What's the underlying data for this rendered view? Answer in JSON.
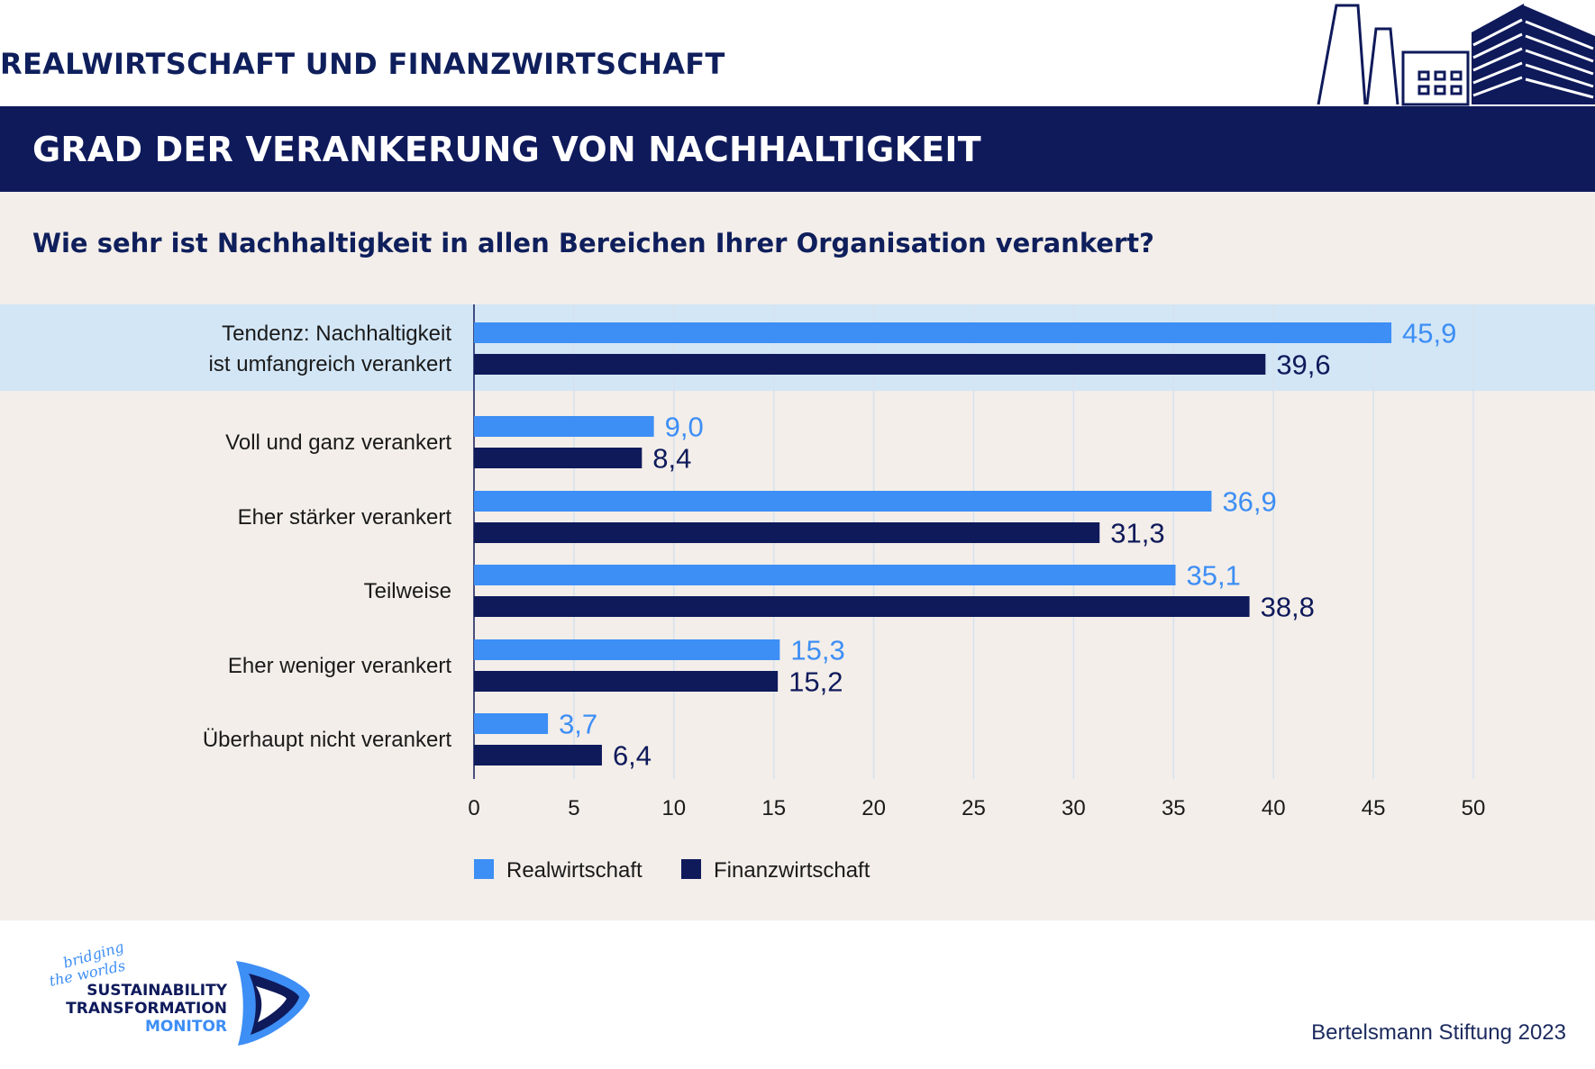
{
  "header": {
    "top_label": "REALWIRTSCHAFT UND FINANZWIRTSCHAFT",
    "title": "GRAD DER VERANKERUNG VON NACHHALTIGKEIT",
    "question": "Wie sehr ist Nachhaltigkeit in allen Bereichen Ihrer Organisation verankert?"
  },
  "colors": {
    "navy": "#0f1a5b",
    "real": "#3d8ef5",
    "fin": "#0f1a5b",
    "highlight": "#d3e6f6",
    "beige": "#f3eee9",
    "grid": "#d6e2ef"
  },
  "chart_data": {
    "type": "bar",
    "orientation": "horizontal",
    "categories": [
      [
        "Tendenz: Nachhaltigkeit",
        "ist umfangreich verankert"
      ],
      [
        "Voll und ganz verankert"
      ],
      [
        "Eher stärker verankert"
      ],
      [
        "Teilweise"
      ],
      [
        "Eher weniger verankert"
      ],
      [
        "Überhaupt nicht verankert"
      ]
    ],
    "highlighted_category": 0,
    "series": [
      {
        "name": "Realwirtschaft",
        "values": [
          45.9,
          9.0,
          36.9,
          35.1,
          15.3,
          3.7
        ],
        "labels": [
          "45,9",
          "9,0",
          "36,9",
          "35,1",
          "15,3",
          "3,7"
        ]
      },
      {
        "name": "Finanzwirtschaft",
        "values": [
          39.6,
          8.4,
          31.3,
          38.8,
          15.2,
          6.4
        ],
        "labels": [
          "39,6",
          "8,4",
          "31,3",
          "38,8",
          "15,2",
          "6,4"
        ]
      }
    ],
    "xlim": [
      0,
      50
    ],
    "xticks": [
      0,
      5,
      10,
      15,
      20,
      25,
      30,
      35,
      40,
      45,
      50
    ],
    "grid": true,
    "legend_position": "bottom-left"
  },
  "footer": {
    "logo_script": [
      "bridging",
      "the worlds"
    ],
    "logo_lines": [
      "SUSTAINABILITY",
      "TRANSFORMATION",
      "MONITOR"
    ],
    "credit": "Bertelsmann Stiftung 2023"
  }
}
